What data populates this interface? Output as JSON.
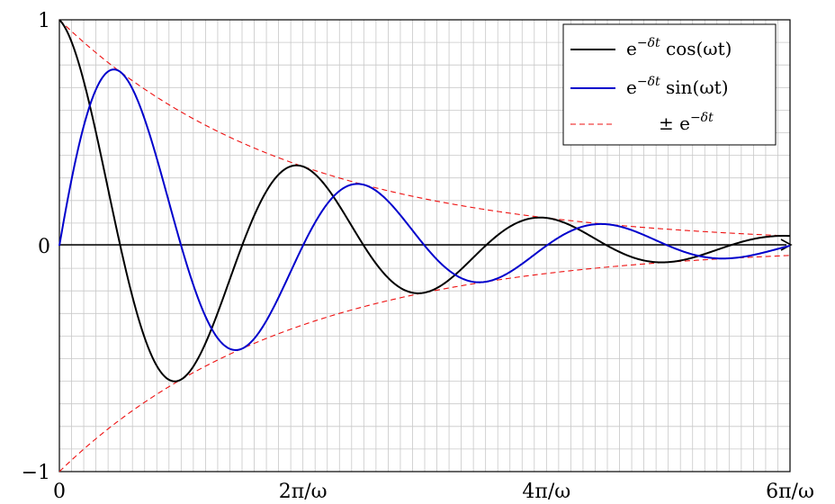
{
  "chart_data": {
    "type": "line",
    "title": "",
    "xlabel": "",
    "ylabel": "",
    "xlim": [
      0,
      6
    ],
    "ylim": [
      -1,
      1
    ],
    "x_unit": "π/ω",
    "grid": true,
    "legend_position": "top-right",
    "x_ticks": [
      {
        "value": 0,
        "label": "0"
      },
      {
        "value": 2,
        "label": "2π/ω"
      },
      {
        "value": 4,
        "label": "4π/ω"
      },
      {
        "value": 6,
        "label": "6π/ω"
      }
    ],
    "y_ticks": [
      {
        "value": 1,
        "label": "1"
      },
      {
        "value": 0,
        "label": "0"
      },
      {
        "value": -1,
        "label": "−1"
      }
    ],
    "decay_rate_per_pi_over_omega": 0.524,
    "series": [
      {
        "name": "e^{−δt} cos(ωt)",
        "legend_base": "e",
        "legend_sup": "−δt",
        "legend_tail": " cos(ωt)",
        "color": "#000000",
        "style": "solid",
        "x": [
          0,
          0.25,
          0.5,
          0.75,
          1,
          1.25,
          1.5,
          1.75,
          2,
          2.25,
          2.5,
          2.75,
          3,
          3.25,
          3.5,
          3.75,
          4,
          4.25,
          4.5,
          4.75,
          5,
          5.25,
          5.5,
          5.75,
          6
        ],
        "y": [
          1,
          0.62,
          0,
          -0.61,
          -0.59,
          -0.36,
          0,
          0.35,
          0.37,
          0.22,
          0,
          -0.21,
          -0.22,
          -0.13,
          0,
          0.12,
          0.13,
          0.08,
          0,
          -0.07,
          -0.07,
          -0.05,
          0,
          0.04,
          0.04
        ]
      },
      {
        "name": "e^{−δt} sin(ωt)",
        "legend_base": "e",
        "legend_sup": "−δt",
        "legend_tail": " sin(ωt)",
        "color": "#0000cc",
        "style": "solid",
        "x": [
          0,
          0.25,
          0.5,
          0.75,
          1,
          1.25,
          1.5,
          1.75,
          2,
          2.25,
          2.5,
          2.75,
          3,
          3.25,
          3.5,
          3.75,
          4,
          4.25,
          4.5,
          4.75,
          5,
          5.25,
          5.5,
          5.75,
          6
        ],
        "y": [
          0,
          0.62,
          0.77,
          0.61,
          0,
          -0.36,
          -0.44,
          -0.35,
          0,
          0.22,
          0.27,
          0.21,
          0,
          -0.13,
          -0.16,
          -0.12,
          0,
          0.08,
          0.09,
          0.07,
          0,
          -0.05,
          -0.06,
          -0.04,
          0
        ]
      },
      {
        "name": "± e^{−δt}",
        "legend_base": "± e",
        "legend_sup": "−δt",
        "legend_tail": "",
        "color": "#ee1111",
        "style": "dashed",
        "x": [
          0,
          0.5,
          1,
          1.5,
          2,
          2.5,
          3,
          3.5,
          4,
          4.5,
          5,
          5.5,
          6
        ],
        "y": [
          1,
          0.77,
          0.59,
          0.46,
          0.35,
          0.27,
          0.21,
          0.16,
          0.12,
          0.09,
          0.07,
          0.06,
          0.04
        ]
      }
    ]
  }
}
